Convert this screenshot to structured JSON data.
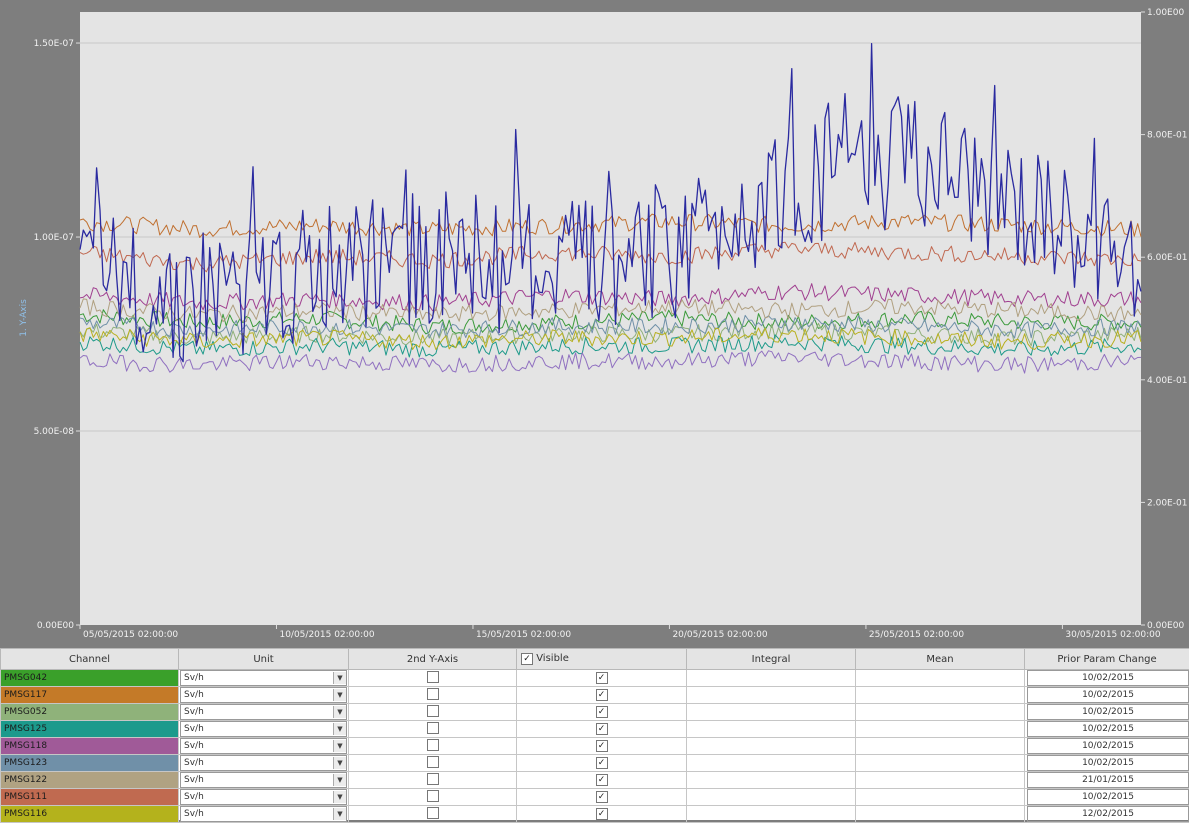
{
  "chart_data": {
    "type": "line",
    "y_left": {
      "label": "1. Y-Axis",
      "ticks": [
        "0.00E00",
        "5.00E-08",
        "1.00E-07",
        "1.50E-07"
      ],
      "range": [
        0,
        1.58e-07
      ]
    },
    "y_right": {
      "ticks": [
        "0.00E00",
        "2.00E-01",
        "4.00E-01",
        "6.00E-01",
        "8.00E-01",
        "1.00E00"
      ],
      "range": [
        0,
        1.0
      ]
    },
    "x_ticks": [
      "05/05/2015 02:00:00",
      "10/05/2015 02:00:00",
      "15/05/2015 02:00:00",
      "20/05/2015 02:00:00",
      "25/05/2015 02:00:00",
      "30/05/2015 02:00:00"
    ],
    "x_range": [
      "05/05/2015",
      "01/06/2015"
    ],
    "grid": true,
    "series": [
      {
        "color": "#3a9a3a",
        "values": [
          8e-08,
          7.8e-08,
          7.9e-08,
          7.7e-08,
          7.8e-08,
          7.9e-08,
          7.8e-08,
          7.9e-08,
          7.8e-08,
          7.8e-08
        ]
      },
      {
        "color": "#c07030",
        "values": [
          1.04e-07,
          1.02e-07,
          1.03e-07,
          1.02e-07,
          1.03e-07,
          1.04e-07,
          1.03e-07,
          1.04e-07,
          1.03e-07,
          1.02e-07
        ]
      },
      {
        "color": "#8fb07a",
        "values": [
          7.6e-08,
          7.4e-08,
          7.5e-08,
          7.4e-08,
          7.5e-08,
          7.5e-08,
          7.6e-08,
          7.5e-08,
          7.4e-08,
          7.5e-08
        ]
      },
      {
        "color": "#1e9a8a",
        "values": [
          7.3e-08,
          7.1e-08,
          7.2e-08,
          7.1e-08,
          7.2e-08,
          7.2e-08,
          7.3e-08,
          7.2e-08,
          7.1e-08,
          7.2e-08
        ]
      },
      {
        "color": "#a04090",
        "values": [
          8.5e-08,
          8.3e-08,
          8.4e-08,
          8.3e-08,
          8.5e-08,
          8.4e-08,
          8.6e-08,
          8.5e-08,
          8.4e-08,
          8.4e-08
        ]
      },
      {
        "color": "#7090a8",
        "values": [
          7.8e-08,
          7.6e-08,
          7.7e-08,
          7.6e-08,
          7.7e-08,
          7.7e-08,
          7.8e-08,
          7.7e-08,
          7.6e-08,
          7.7e-08
        ]
      },
      {
        "color": "#b0a080",
        "values": [
          8.2e-08,
          8e-08,
          8.1e-08,
          8e-08,
          8.1e-08,
          8.2e-08,
          8.1e-08,
          8.2e-08,
          8.1e-08,
          8e-08
        ]
      },
      {
        "color": "#c06850",
        "values": [
          9.6e-08,
          9.3e-08,
          9.5e-08,
          9.4e-08,
          9.6e-08,
          9.5e-08,
          9.7e-08,
          9.6e-08,
          9.5e-08,
          9.4e-08
        ]
      },
      {
        "color": "#b8b020",
        "values": [
          7.5e-08,
          7.3e-08,
          7.4e-08,
          7.3e-08,
          7.4e-08,
          7.4e-08,
          7.5e-08,
          7.4e-08,
          7.3e-08,
          7.4e-08
        ]
      },
      {
        "color": "#2a2aa0",
        "values": [
          9e-08,
          8.5e-08,
          9e-08,
          9.5e-08,
          9.2e-08,
          9.6e-08,
          1.15e-07,
          1.2e-07,
          1.05e-07,
          9e-08
        ]
      },
      {
        "color": "#9070c0",
        "values": [
          6.8e-08,
          6.7e-08,
          6.8e-08,
          6.7e-08,
          6.8e-08,
          6.8e-08,
          6.9e-08,
          6.8e-08,
          6.7e-08,
          6.8e-08
        ]
      }
    ]
  },
  "grid": {
    "headers": {
      "channel": "Channel",
      "unit": "Unit",
      "second_axis": "2nd Y-Axis",
      "visible": "Visible",
      "integral": "Integral",
      "mean": "Mean",
      "prior": "Prior Param Change"
    },
    "rows": [
      {
        "channel": "PMSG042",
        "color": "#3aa02a",
        "unit": "Sv/h",
        "second_axis": false,
        "visible": true,
        "integral": "",
        "mean": "",
        "prior": "10/02/2015"
      },
      {
        "channel": "PMSG117",
        "color": "#c47a28",
        "unit": "Sv/h",
        "second_axis": false,
        "visible": true,
        "integral": "",
        "mean": "",
        "prior": "10/02/2015"
      },
      {
        "channel": "PMSG052",
        "color": "#8fb27a",
        "unit": "Sv/h",
        "second_axis": false,
        "visible": true,
        "integral": "",
        "mean": "",
        "prior": "10/02/2015"
      },
      {
        "channel": "PMSG125",
        "color": "#1c9a8c",
        "unit": "Sv/h",
        "second_axis": false,
        "visible": true,
        "integral": "",
        "mean": "",
        "prior": "10/02/2015"
      },
      {
        "channel": "PMSG118",
        "color": "#a05a98",
        "unit": "Sv/h",
        "second_axis": false,
        "visible": true,
        "integral": "",
        "mean": "",
        "prior": "10/02/2015"
      },
      {
        "channel": "PMSG123",
        "color": "#7090a8",
        "unit": "Sv/h",
        "second_axis": false,
        "visible": true,
        "integral": "",
        "mean": "",
        "prior": "10/02/2015"
      },
      {
        "channel": "PMSG122",
        "color": "#b0a282",
        "unit": "Sv/h",
        "second_axis": false,
        "visible": true,
        "integral": "",
        "mean": "",
        "prior": "21/01/2015"
      },
      {
        "channel": "PMSG111",
        "color": "#c06a50",
        "unit": "Sv/h",
        "second_axis": false,
        "visible": true,
        "integral": "",
        "mean": "",
        "prior": "10/02/2015"
      },
      {
        "channel": "PMSG116",
        "color": "#b4b21c",
        "unit": "Sv/h",
        "second_axis": false,
        "visible": true,
        "integral": "",
        "mean": "",
        "prior": "12/02/2015"
      }
    ]
  }
}
